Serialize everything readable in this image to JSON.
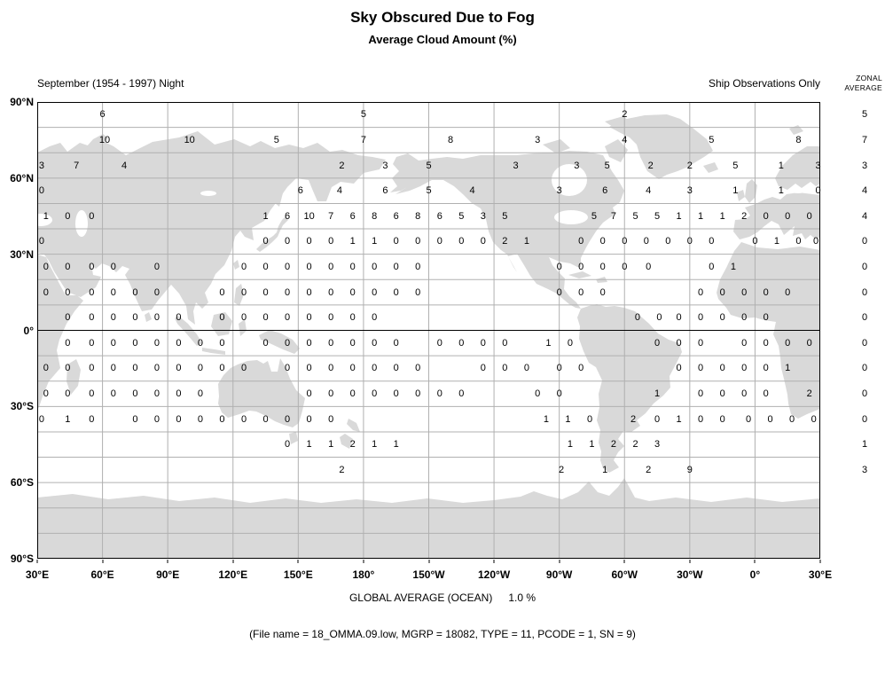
{
  "title": "Sky Obscured Due to Fog",
  "subtitle": "Average Cloud Amount (%)",
  "header": {
    "period": "September (1954 - 1997) Night",
    "source": "Ship Observations Only",
    "zonal_label_line1": "ZONAL",
    "zonal_label_line2": "AVERAGE"
  },
  "footer": {
    "global_average_label": "GLOBAL AVERAGE (OCEAN)",
    "global_average_value": "1.0 %",
    "file_info": "(File name = 18_OMMA.09.low, MGRP = 18082, TYPE = 11, PCODE = 1, SN = 9)"
  },
  "colors": {
    "land": "#d9d9d9",
    "ocean": "#ffffff",
    "grid": "#b0b0b0",
    "equator": "#000000",
    "border": "#000000",
    "text": "#000000"
  },
  "chart_data": {
    "type": "heatmap",
    "title": "Sky Obscured Due to Fog - Average Cloud Amount (%)",
    "projection": "equirectangular world map, left edge at 30E, spanning 360 degrees",
    "grid": {
      "lon_step_deg": 30,
      "lat_step_deg": 10
    },
    "x_tick_labels": [
      "30°E",
      "60°E",
      "90°E",
      "120°E",
      "150°E",
      "180°",
      "150°W",
      "120°W",
      "90°W",
      "60°W",
      "30°W",
      "0°",
      "30°E"
    ],
    "y_tick_labels": [
      "90°N",
      "60°N",
      "30°N",
      "0°",
      "30°S",
      "60°S",
      "90°S"
    ],
    "value_x_unit": "degrees east of map left edge (30E)",
    "rows": [
      {
        "lat_band": "80N-90N",
        "zonal_average": "5",
        "values": [
          [
            30,
            "6"
          ],
          [
            150,
            "5"
          ],
          [
            270,
            "2"
          ]
        ]
      },
      {
        "lat_band": "70N-80N",
        "zonal_average": "7",
        "values": [
          [
            31,
            "10"
          ],
          [
            70,
            "10"
          ],
          [
            110,
            "5"
          ],
          [
            150,
            "7"
          ],
          [
            190,
            "8"
          ],
          [
            230,
            "3"
          ],
          [
            270,
            "4"
          ],
          [
            310,
            "5"
          ],
          [
            350,
            "8"
          ]
        ]
      },
      {
        "lat_band": "60N-70N",
        "zonal_average": "3",
        "values": [
          [
            2,
            "3"
          ],
          [
            18,
            "7"
          ],
          [
            40,
            "4"
          ],
          [
            140,
            "2"
          ],
          [
            160,
            "3"
          ],
          [
            180,
            "5"
          ],
          [
            220,
            "3"
          ],
          [
            248,
            "3"
          ],
          [
            262,
            "5"
          ],
          [
            282,
            "2"
          ],
          [
            300,
            "2"
          ],
          [
            321,
            "5"
          ],
          [
            342,
            "1"
          ],
          [
            359,
            "3"
          ]
        ]
      },
      {
        "lat_band": "50N-60N",
        "zonal_average": "4",
        "values": [
          [
            2,
            "0"
          ],
          [
            121,
            "6"
          ],
          [
            139,
            "4"
          ],
          [
            160,
            "6"
          ],
          [
            180,
            "5"
          ],
          [
            200,
            "4"
          ],
          [
            240,
            "3"
          ],
          [
            261,
            "6"
          ],
          [
            281,
            "4"
          ],
          [
            300,
            "3"
          ],
          [
            321,
            "1"
          ],
          [
            342,
            "1"
          ],
          [
            359,
            "0"
          ]
        ]
      },
      {
        "lat_band": "40N-50N",
        "zonal_average": "4",
        "values": [
          [
            4,
            "1"
          ],
          [
            14,
            "0"
          ],
          [
            25,
            "0"
          ],
          [
            105,
            "1"
          ],
          [
            115,
            "6"
          ],
          [
            125,
            "10"
          ],
          [
            135,
            "7"
          ],
          [
            145,
            "6"
          ],
          [
            155,
            "8"
          ],
          [
            165,
            "6"
          ],
          [
            175,
            "8"
          ],
          [
            185,
            "6"
          ],
          [
            195,
            "5"
          ],
          [
            205,
            "3"
          ],
          [
            215,
            "5"
          ],
          [
            256,
            "5"
          ],
          [
            265,
            "7"
          ],
          [
            275,
            "5"
          ],
          [
            285,
            "5"
          ],
          [
            295,
            "1"
          ],
          [
            305,
            "1"
          ],
          [
            315,
            "1"
          ],
          [
            325,
            "2"
          ],
          [
            335,
            "0"
          ],
          [
            345,
            "0"
          ],
          [
            355,
            "0"
          ]
        ]
      },
      {
        "lat_band": "30N-40N",
        "zonal_average": "0",
        "values": [
          [
            2,
            "0"
          ],
          [
            105,
            "0"
          ],
          [
            115,
            "0"
          ],
          [
            125,
            "0"
          ],
          [
            135,
            "0"
          ],
          [
            145,
            "1"
          ],
          [
            155,
            "1"
          ],
          [
            165,
            "0"
          ],
          [
            175,
            "0"
          ],
          [
            185,
            "0"
          ],
          [
            195,
            "0"
          ],
          [
            205,
            "0"
          ],
          [
            215,
            "2"
          ],
          [
            225,
            "1"
          ],
          [
            250,
            "0"
          ],
          [
            260,
            "0"
          ],
          [
            270,
            "0"
          ],
          [
            280,
            "0"
          ],
          [
            290,
            "0"
          ],
          [
            300,
            "0"
          ],
          [
            310,
            "0"
          ],
          [
            330,
            "0"
          ],
          [
            340,
            "1"
          ],
          [
            350,
            "0"
          ],
          [
            358,
            "0"
          ]
        ]
      },
      {
        "lat_band": "20N-30N",
        "zonal_average": "0",
        "values": [
          [
            4,
            "0"
          ],
          [
            14,
            "0"
          ],
          [
            25,
            "0"
          ],
          [
            35,
            "0"
          ],
          [
            55,
            "0"
          ],
          [
            95,
            "0"
          ],
          [
            105,
            "0"
          ],
          [
            115,
            "0"
          ],
          [
            125,
            "0"
          ],
          [
            135,
            "0"
          ],
          [
            145,
            "0"
          ],
          [
            155,
            "0"
          ],
          [
            165,
            "0"
          ],
          [
            175,
            "0"
          ],
          [
            240,
            "0"
          ],
          [
            250,
            "0"
          ],
          [
            260,
            "0"
          ],
          [
            270,
            "0"
          ],
          [
            281,
            "0"
          ],
          [
            310,
            "0"
          ],
          [
            320,
            "1"
          ]
        ]
      },
      {
        "lat_band": "10N-20N",
        "zonal_average": "0",
        "values": [
          [
            4,
            "0"
          ],
          [
            14,
            "0"
          ],
          [
            25,
            "0"
          ],
          [
            35,
            "0"
          ],
          [
            45,
            "0"
          ],
          [
            55,
            "0"
          ],
          [
            85,
            "0"
          ],
          [
            95,
            "0"
          ],
          [
            105,
            "0"
          ],
          [
            115,
            "0"
          ],
          [
            125,
            "0"
          ],
          [
            135,
            "0"
          ],
          [
            145,
            "0"
          ],
          [
            155,
            "0"
          ],
          [
            165,
            "0"
          ],
          [
            175,
            "0"
          ],
          [
            240,
            "0"
          ],
          [
            250,
            "0"
          ],
          [
            260,
            "0"
          ],
          [
            305,
            "0"
          ],
          [
            315,
            "0"
          ],
          [
            325,
            "0"
          ],
          [
            335,
            "0"
          ],
          [
            345,
            "0"
          ]
        ]
      },
      {
        "lat_band": "0-10N",
        "zonal_average": "0",
        "values": [
          [
            14,
            "0"
          ],
          [
            25,
            "0"
          ],
          [
            35,
            "0"
          ],
          [
            45,
            "0"
          ],
          [
            55,
            "0"
          ],
          [
            65,
            "0"
          ],
          [
            85,
            "0"
          ],
          [
            95,
            "0"
          ],
          [
            105,
            "0"
          ],
          [
            115,
            "0"
          ],
          [
            125,
            "0"
          ],
          [
            135,
            "0"
          ],
          [
            145,
            "0"
          ],
          [
            155,
            "0"
          ],
          [
            276,
            "0"
          ],
          [
            286,
            "0"
          ],
          [
            295,
            "0"
          ],
          [
            305,
            "0"
          ],
          [
            315,
            "0"
          ],
          [
            325,
            "0"
          ],
          [
            335,
            "0"
          ]
        ]
      },
      {
        "lat_band": "0-10S",
        "zonal_average": "0",
        "values": [
          [
            14,
            "0"
          ],
          [
            25,
            "0"
          ],
          [
            35,
            "0"
          ],
          [
            45,
            "0"
          ],
          [
            55,
            "0"
          ],
          [
            65,
            "0"
          ],
          [
            75,
            "0"
          ],
          [
            85,
            "0"
          ],
          [
            105,
            "0"
          ],
          [
            115,
            "0"
          ],
          [
            125,
            "0"
          ],
          [
            135,
            "0"
          ],
          [
            145,
            "0"
          ],
          [
            155,
            "0"
          ],
          [
            165,
            "0"
          ],
          [
            185,
            "0"
          ],
          [
            195,
            "0"
          ],
          [
            205,
            "0"
          ],
          [
            215,
            "0"
          ],
          [
            235,
            "1"
          ],
          [
            245,
            "0"
          ],
          [
            285,
            "0"
          ],
          [
            295,
            "0"
          ],
          [
            305,
            "0"
          ],
          [
            325,
            "0"
          ],
          [
            335,
            "0"
          ],
          [
            345,
            "0"
          ],
          [
            355,
            "0"
          ]
        ]
      },
      {
        "lat_band": "10S-20S",
        "zonal_average": "0",
        "values": [
          [
            4,
            "0"
          ],
          [
            14,
            "0"
          ],
          [
            25,
            "0"
          ],
          [
            35,
            "0"
          ],
          [
            45,
            "0"
          ],
          [
            55,
            "0"
          ],
          [
            65,
            "0"
          ],
          [
            75,
            "0"
          ],
          [
            85,
            "0"
          ],
          [
            95,
            "0"
          ],
          [
            115,
            "0"
          ],
          [
            125,
            "0"
          ],
          [
            135,
            "0"
          ],
          [
            145,
            "0"
          ],
          [
            155,
            "0"
          ],
          [
            165,
            "0"
          ],
          [
            175,
            "0"
          ],
          [
            205,
            "0"
          ],
          [
            215,
            "0"
          ],
          [
            225,
            "0"
          ],
          [
            240,
            "0"
          ],
          [
            250,
            "0"
          ],
          [
            295,
            "0"
          ],
          [
            305,
            "0"
          ],
          [
            315,
            "0"
          ],
          [
            325,
            "0"
          ],
          [
            335,
            "0"
          ],
          [
            345,
            "1"
          ]
        ]
      },
      {
        "lat_band": "20S-30S",
        "zonal_average": "0",
        "values": [
          [
            4,
            "0"
          ],
          [
            14,
            "0"
          ],
          [
            25,
            "0"
          ],
          [
            35,
            "0"
          ],
          [
            45,
            "0"
          ],
          [
            55,
            "0"
          ],
          [
            65,
            "0"
          ],
          [
            75,
            "0"
          ],
          [
            125,
            "0"
          ],
          [
            135,
            "0"
          ],
          [
            145,
            "0"
          ],
          [
            155,
            "0"
          ],
          [
            165,
            "0"
          ],
          [
            175,
            "0"
          ],
          [
            185,
            "0"
          ],
          [
            195,
            "0"
          ],
          [
            230,
            "0"
          ],
          [
            240,
            "0"
          ],
          [
            285,
            "1"
          ],
          [
            305,
            "0"
          ],
          [
            315,
            "0"
          ],
          [
            325,
            "0"
          ],
          [
            335,
            "0"
          ],
          [
            355,
            "2"
          ]
        ]
      },
      {
        "lat_band": "30S-40S",
        "zonal_average": "0",
        "values": [
          [
            2,
            "0"
          ],
          [
            14,
            "1"
          ],
          [
            25,
            "0"
          ],
          [
            45,
            "0"
          ],
          [
            55,
            "0"
          ],
          [
            65,
            "0"
          ],
          [
            75,
            "0"
          ],
          [
            85,
            "0"
          ],
          [
            95,
            "0"
          ],
          [
            105,
            "0"
          ],
          [
            115,
            "0"
          ],
          [
            125,
            "0"
          ],
          [
            135,
            "0"
          ],
          [
            234,
            "1"
          ],
          [
            244,
            "1"
          ],
          [
            254,
            "0"
          ],
          [
            274,
            "2"
          ],
          [
            285,
            "0"
          ],
          [
            295,
            "1"
          ],
          [
            305,
            "0"
          ],
          [
            315,
            "0"
          ],
          [
            327,
            "0"
          ],
          [
            337,
            "0"
          ],
          [
            347,
            "0"
          ],
          [
            357,
            "0"
          ]
        ]
      },
      {
        "lat_band": "40S-50S",
        "zonal_average": "1",
        "values": [
          [
            115,
            "0"
          ],
          [
            125,
            "1"
          ],
          [
            135,
            "1"
          ],
          [
            145,
            "2"
          ],
          [
            155,
            "1"
          ],
          [
            165,
            "1"
          ],
          [
            245,
            "1"
          ],
          [
            255,
            "1"
          ],
          [
            265,
            "2"
          ],
          [
            275,
            "2"
          ],
          [
            285,
            "3"
          ]
        ]
      },
      {
        "lat_band": "50S-60S",
        "zonal_average": "3",
        "values": [
          [
            140,
            "2"
          ],
          [
            241,
            "2"
          ],
          [
            261,
            "1"
          ],
          [
            281,
            "2"
          ],
          [
            300,
            "9"
          ]
        ]
      }
    ],
    "global_average_ocean_pct": "1.0"
  }
}
